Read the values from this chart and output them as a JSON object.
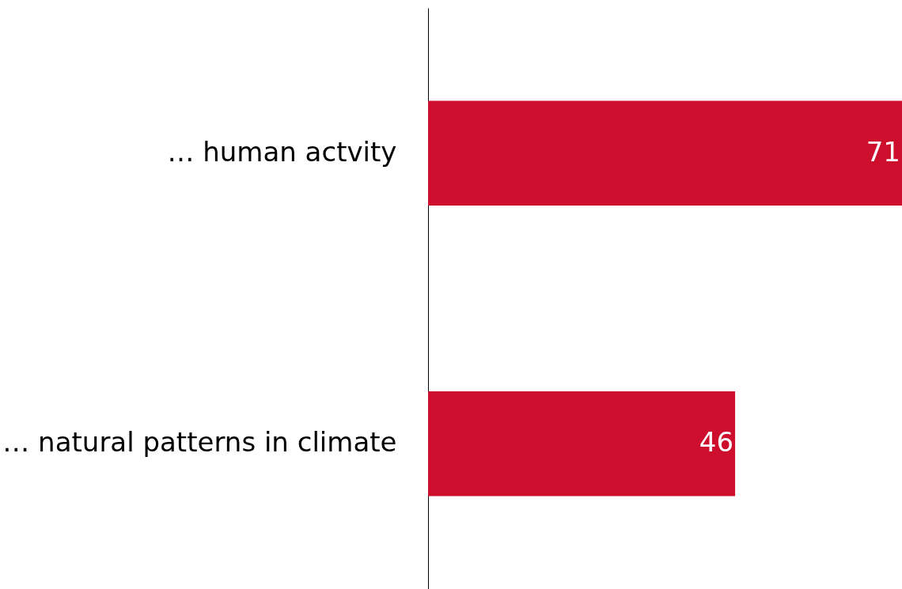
{
  "chart_data": {
    "type": "bar",
    "orientation": "horizontal",
    "categories": [
      "… human actvity",
      "… natural patterns in climate"
    ],
    "values": [
      71,
      46
    ],
    "color": "#ce0e2d",
    "data_labels": true
  }
}
